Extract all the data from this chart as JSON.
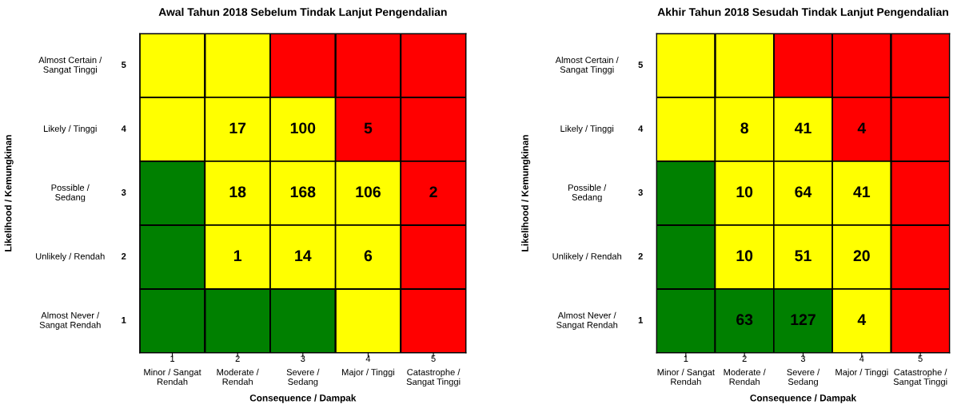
{
  "chart_data": [
    {
      "type": "heatmap",
      "title": "Awal Tahun 2018 Sebelum Tindak Lanjut Pengendalian",
      "xlabel": "Consequence / Dampak",
      "ylabel": "Likelihood / Kemungkinan",
      "categories": [
        "1\nMinor / Sangat\nRendah",
        "2\nModerate /\nRendah",
        "3\nSevere /\nSedang",
        "4\nMajor / Tinggi",
        "5\nCatastrophe /\nSangat Tinggi"
      ],
      "y_categories": [
        "Almost Certain /\nSangat Tinggi",
        "Likely / Tinggi",
        "Possible /\nSedang",
        "Unlikely / Rendah",
        "Almost Never /\nSangat Rendah"
      ],
      "y2_categories": [
        "5",
        "4",
        "3",
        "2",
        "1"
      ],
      "cells": [
        [
          null,
          null,
          null,
          null,
          null
        ],
        [
          null,
          17,
          100,
          5,
          null
        ],
        [
          null,
          18,
          168,
          106,
          2
        ],
        [
          null,
          1,
          14,
          6,
          null
        ],
        [
          null,
          null,
          null,
          null,
          null
        ]
      ],
      "colors": [
        [
          "#ffff00",
          "#ffff00",
          "#ff0000",
          "#ff0000",
          "#ff0000"
        ],
        [
          "#ffff00",
          "#ffff00",
          "#ffff00",
          "#ff0000",
          "#ff0000"
        ],
        [
          "#008000",
          "#ffff00",
          "#ffff00",
          "#ffff00",
          "#ff0000"
        ],
        [
          "#008000",
          "#ffff00",
          "#ffff00",
          "#ffff00",
          "#ff0000"
        ],
        [
          "#008000",
          "#008000",
          "#008000",
          "#ffff00",
          "#ff0000"
        ]
      ],
      "data_labels": true
    },
    {
      "type": "heatmap",
      "title": "Akhir Tahun 2018 Sesudah Tindak Lanjut Pengendalian",
      "xlabel": "Consequence / Dampak",
      "ylabel": "Likelihood / Kemungkinan",
      "categories": [
        "1\nMinor / Sangat\nRendah",
        "2\nModerate /\nRendah",
        "3\nSevere /\nSedang",
        "4\nMajor / Tinggi",
        "5\nCatastrophe /\nSangat Tinggi"
      ],
      "y_categories": [
        "Almost Certain /\nSangat Tinggi",
        "Likely / Tinggi",
        "Possible /\nSedang",
        "Unlikely / Rendah",
        "Almost Never /\nSangat Rendah"
      ],
      "y2_categories": [
        "5",
        "4",
        "3",
        "2",
        "1"
      ],
      "cells": [
        [
          null,
          null,
          null,
          null,
          null
        ],
        [
          null,
          8,
          41,
          4,
          null
        ],
        [
          null,
          10,
          64,
          41,
          null
        ],
        [
          null,
          10,
          51,
          20,
          null
        ],
        [
          null,
          63,
          127,
          4,
          null
        ]
      ],
      "colors": [
        [
          "#ffff00",
          "#ffff00",
          "#ff0000",
          "#ff0000",
          "#ff0000"
        ],
        [
          "#ffff00",
          "#ffff00",
          "#ffff00",
          "#ff0000",
          "#ff0000"
        ],
        [
          "#008000",
          "#ffff00",
          "#ffff00",
          "#ffff00",
          "#ff0000"
        ],
        [
          "#008000",
          "#ffff00",
          "#ffff00",
          "#ffff00",
          "#ff0000"
        ],
        [
          "#008000",
          "#008000",
          "#008000",
          "#ffff00",
          "#ff0000"
        ]
      ],
      "data_labels": true
    }
  ]
}
